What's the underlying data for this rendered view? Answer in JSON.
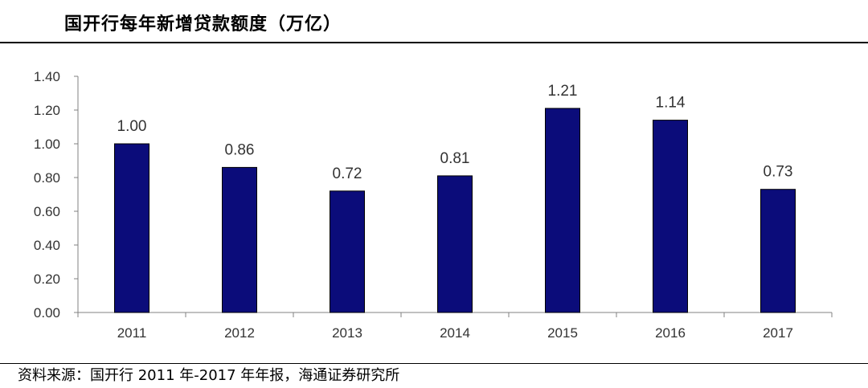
{
  "title": "国开行每年新增贷款额度（万亿）",
  "source": "资料来源：国开行 2011 年-2017 年年报，海通证券研究所",
  "colors": {
    "bar": "#0b0c7a",
    "axis": "#808080",
    "text": "#333333"
  },
  "chart_data": {
    "type": "bar",
    "title": "国开行每年新增贷款额度（万亿）",
    "categories": [
      "2011",
      "2012",
      "2013",
      "2014",
      "2015",
      "2016",
      "2017"
    ],
    "values": [
      1.0,
      0.86,
      0.72,
      0.81,
      1.21,
      1.14,
      0.73
    ],
    "value_labels": [
      "1.00",
      "0.86",
      "0.72",
      "0.81",
      "1.21",
      "1.14",
      "0.73"
    ],
    "ylim": [
      0,
      1.4
    ],
    "yticks": [
      "0.00",
      "0.20",
      "0.40",
      "0.60",
      "0.80",
      "1.00",
      "1.20",
      "1.40"
    ],
    "grid": false,
    "legend": "none"
  }
}
